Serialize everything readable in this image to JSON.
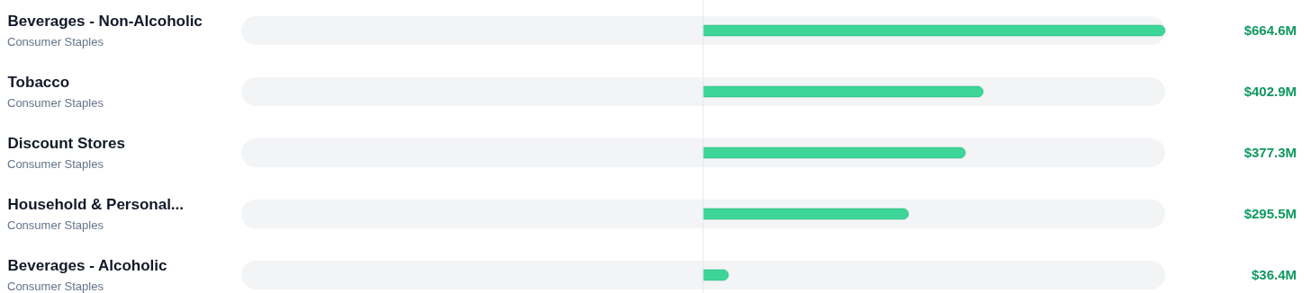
{
  "chart_data": {
    "type": "bar",
    "orientation": "horizontal",
    "categories": [
      "Beverages - Non-Alcoholic",
      "Tobacco",
      "Discount Stores",
      "Household & Personal...",
      "Beverages - Alcoholic"
    ],
    "values": [
      664.6,
      402.9,
      377.3,
      295.5,
      36.4
    ],
    "value_labels": [
      "$664.6M",
      "$402.9M",
      "$377.3M",
      "$295.5M",
      "$36.4M"
    ],
    "color": "#3dd598",
    "xlim": [
      -664.6,
      664.6
    ],
    "tick_labels": "y",
    "grid": false,
    "ref_lines": [
      {
        "axis": "x",
        "value": 0,
        "color": "#e5e7eb"
      }
    ],
    "annotations": [
      "Consumer Staples",
      "Consumer Staples",
      "Consumer Staples",
      "Consumer Staples",
      "Consumer Staples"
    ]
  }
}
